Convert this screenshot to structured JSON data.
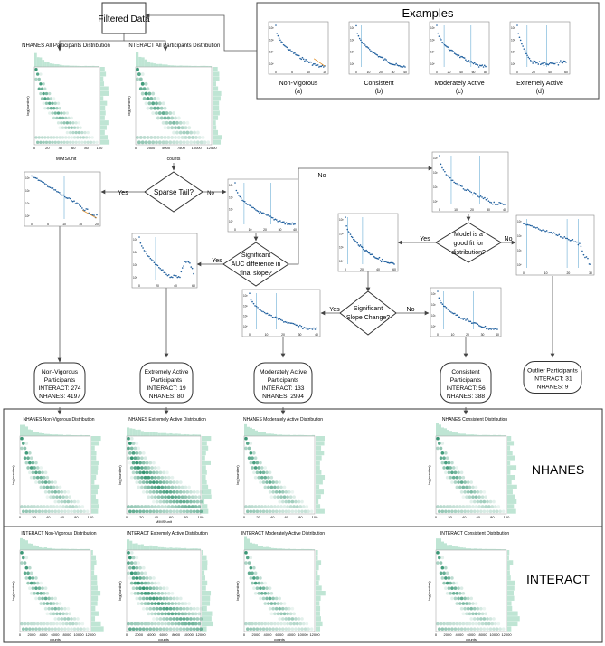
{
  "filtered_data": "Filtered Data",
  "examples": {
    "title": "Examples",
    "items": [
      {
        "name": "Non-Vigorous",
        "tag": "(a)"
      },
      {
        "name": "Consistent",
        "tag": "(b)"
      },
      {
        "name": "Moderately Active",
        "tag": "(c)"
      },
      {
        "name": "Extremely Active",
        "tag": "(d)"
      }
    ]
  },
  "top_plots": {
    "nhanes_all": "NHANES All Participants Distribution",
    "interact_all": "INTERACT All Participants Distribution",
    "nhanes_x": "MIMS/unit",
    "interact_x": "counts",
    "ylabel": "log(number)"
  },
  "decisions": {
    "sparse_tail": "Sparse Tail?",
    "auc": [
      "Significant",
      "AUC difference in",
      "final slope?"
    ],
    "model_fit": [
      "Model is a",
      "good fit for",
      "distribution?"
    ],
    "slope_change": [
      "Significant",
      "Slope Change?"
    ],
    "yes": "Yes",
    "no": "No"
  },
  "outcomes": [
    {
      "lines": [
        "Non-Vigorous",
        "Participants",
        "INTERACT: 274",
        "NHANES: 4197"
      ]
    },
    {
      "lines": [
        "Extremely Active",
        "Participants",
        "INTERACT: 19",
        "NHANES: 80"
      ]
    },
    {
      "lines": [
        "Moderately Active",
        "Participants",
        "INTERACT: 133",
        "NHANES: 2994"
      ]
    },
    {
      "lines": [
        "Consistent",
        "Participants",
        "INTERACT: 56",
        "NHANES: 388"
      ]
    },
    {
      "lines": [
        "Outlier Participants",
        "INTERACT: 31",
        "NHANES: 9"
      ]
    }
  ],
  "bottom": {
    "nhanes_label": "NHANES",
    "interact_label": "INTERACT",
    "nhanes_titles": [
      "NHANES Non-Vigorous Distribution",
      "NHANES Extremely Active Distribution",
      "NHANES Moderately Active Distribution",
      "NHANES Consistent Distribution"
    ],
    "interact_titles": [
      "INTERACT Non-Vigorous Distribution",
      "INTERACT Extremely Active Distribution",
      "INTERACT Moderately Active Distribution",
      "INTERACT Consistent Distribution"
    ],
    "nhanes_x": "MIMS/unit",
    "interact_x": "counts",
    "ylabel": "log(number)"
  },
  "colors": {
    "hex": "#2a8f6a",
    "hex_light": "#bfe5d4",
    "points": "#1f5f9e",
    "vline": "#6aaed6",
    "tail": "#e08a1e",
    "fit": "#2ca02c"
  }
}
